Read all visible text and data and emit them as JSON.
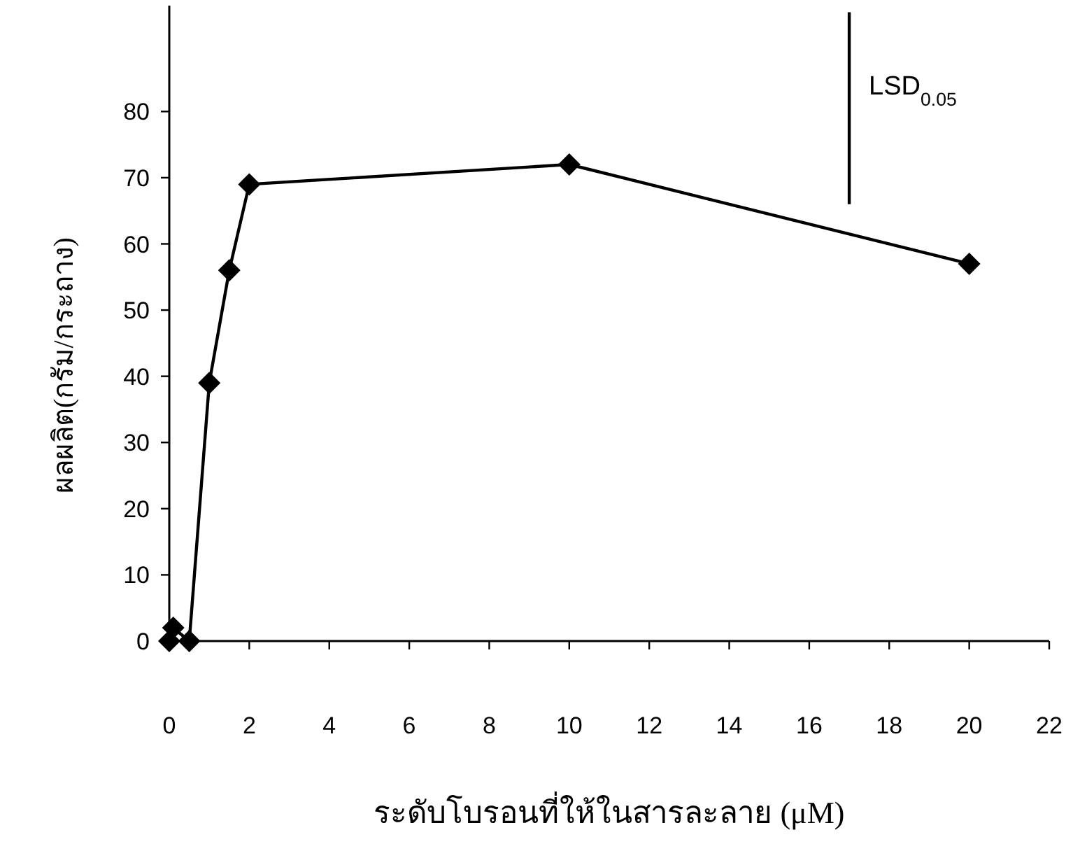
{
  "chart_data": {
    "type": "line",
    "xlabel": "ระดับโบรอนที่ให้ในสารละลาย (μM)",
    "ylabel": "ผลผลิต(กรัม/กระถาง)",
    "xlim": [
      0,
      22
    ],
    "ylim": [
      0,
      96
    ],
    "xticks": [
      0,
      2,
      4,
      6,
      8,
      10,
      12,
      14,
      16,
      18,
      20,
      22
    ],
    "yticks": [
      0,
      10,
      20,
      30,
      40,
      50,
      60,
      70,
      80
    ],
    "marker": "diamond",
    "series": [
      {
        "x": [
          0,
          0.1,
          0.5,
          1,
          1.5,
          2,
          10,
          20
        ],
        "values": [
          0,
          2,
          0,
          39,
          56,
          69,
          72,
          57
        ],
        "color": "#000000"
      },
      {
        "type": "line",
        "name": "LSD$_{0.05}$",
        "x": [
          17,
          17
        ],
        "values": [
          66,
          95
        ],
        "color": "#000000",
        "marker": "none"
      }
    ]
  }
}
